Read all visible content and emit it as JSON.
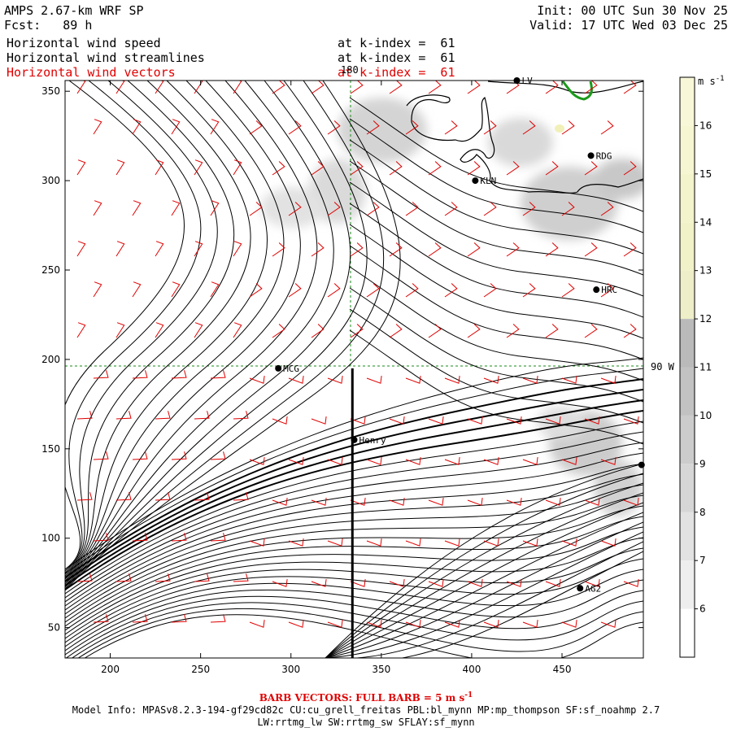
{
  "header": {
    "model_title": "AMPS 2.67-km WRF SP",
    "forecast_hour": "Fcst:   89 h",
    "init_time": "Init: 00 UTC Sun 30 Nov 25",
    "valid_time": "Valid: 17 UTC Wed 03 Dec 25",
    "fields": [
      {
        "name": "Horizontal wind speed",
        "level": "at k-index =  61",
        "color": "#000000"
      },
      {
        "name": "Horizontal wind streamlines",
        "level": "at k-index =  61",
        "color": "#000000"
      },
      {
        "name": "Horizontal wind vectors",
        "level": "at k-index =  61",
        "color": "#e00000"
      }
    ]
  },
  "map": {
    "x_axis": {
      "min": 175,
      "max": 495,
      "ticks": [
        "200",
        "250",
        "300",
        "350",
        "400",
        "450"
      ]
    },
    "y_axis": {
      "min": 33,
      "max": 356,
      "ticks": [
        "50",
        "100",
        "150",
        "200",
        "250",
        "300",
        "350"
      ]
    },
    "gridline_labels": {
      "meridian_top": "180",
      "parallel_right": "90 W"
    },
    "stations": [
      {
        "name": "MCG",
        "x": 293,
        "y": 195
      },
      {
        "name": "Henry",
        "x": 335,
        "y": 155
      },
      {
        "name": "KLN",
        "x": 402,
        "y": 300
      },
      {
        "name": "RDG",
        "x": 466,
        "y": 314
      },
      {
        "name": "HRC",
        "x": 469,
        "y": 239
      },
      {
        "name": "AG2",
        "x": 460,
        "y": 72
      },
      {
        "name": "LV",
        "x": 425,
        "y": 356
      },
      {
        "name": "",
        "x": 494,
        "y": 141
      }
    ],
    "cross_section_line": {
      "x": 334,
      "y_from": 33,
      "y_to": 195
    }
  },
  "colorbar": {
    "units": "m s",
    "units_exp": "-1",
    "min": 5,
    "max": 17,
    "labels": [
      "6",
      "7",
      "8",
      "9",
      "10",
      "11",
      "12",
      "13",
      "14",
      "15",
      "16"
    ]
  },
  "footer": {
    "barb_note": "BARB VECTORS:  FULL BARB = 5 m s",
    "barb_note_exp": "-1",
    "model_info": "Model Info: MPASv8.2.3-194-gf29cd82c CU:cu_grell_freitas PBL:bl_mynn MP:mp_thompson SF:sf_noahmp 2.7",
    "model_info_2": "LW:rrtmg_lw SW:rrtmg_sw SFLAY:sf_mynn"
  },
  "colors": {
    "barb": "#e00000",
    "coast": "#000000",
    "grid": "#1a8a1a",
    "terrain_shade": "#d2d2d2",
    "sea_ice_edge": "#1a9a1a"
  }
}
